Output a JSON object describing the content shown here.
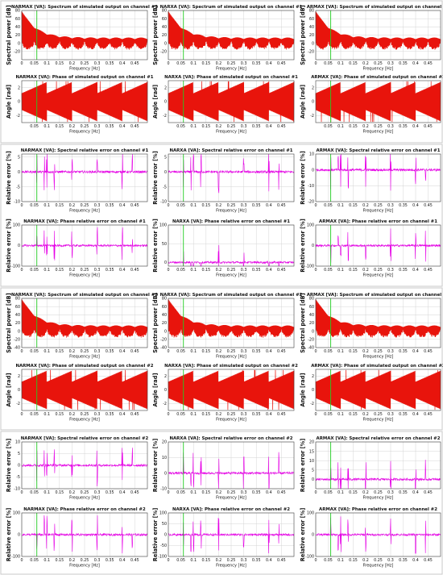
{
  "figure": {
    "groups": [
      {
        "rows": [
          "spectrum",
          "phase"
        ]
      },
      {
        "rows": [
          "spectral_error",
          "phase_error"
        ]
      },
      {
        "rows": [
          "spectrum",
          "phase"
        ]
      },
      {
        "rows": [
          "spectral_error",
          "phase_error"
        ]
      }
    ]
  },
  "colors": {
    "signal_output": "#e8140c",
    "signal_error": "#e600e6",
    "marker": "#22cc22",
    "grid": "#d4d4d4",
    "axis": "#444444"
  },
  "chart_data": [
    {
      "type": "line",
      "model": "NARMAX",
      "channel": 1,
      "kind": "spectrum",
      "title": "NARMAX [VA]: Spectrum of simulated output on channel #1",
      "xlabel": "Frequency [Hz]",
      "ylabel": "Spectral power [dB]",
      "xlim": [
        0,
        0.5
      ],
      "ylim": [
        -40,
        80
      ],
      "yticks": [
        -20,
        0,
        20,
        40,
        60,
        80
      ],
      "xticks": [
        0,
        0.05,
        0.1,
        0.15,
        0.2,
        0.25,
        0.3,
        0.35,
        0.4,
        0.45
      ],
      "marker_x": 0.06,
      "color": "#e8140c"
    },
    {
      "type": "line",
      "model": "NARXA",
      "channel": 1,
      "kind": "spectrum",
      "title": "NARXA [VA]: Spectrum of simulated output on channel #1",
      "xlabel": "Frequency [Hz]",
      "ylabel": "Spectral power [dB]",
      "xlim": [
        0,
        0.5
      ],
      "ylim": [
        -40,
        80
      ],
      "yticks": [
        -20,
        0,
        20,
        40,
        60,
        80
      ],
      "xticks": [
        0,
        0.05,
        0.1,
        0.15,
        0.2,
        0.25,
        0.3,
        0.35,
        0.4,
        0.45
      ],
      "marker_x": 0.06,
      "color": "#e8140c"
    },
    {
      "type": "line",
      "model": "ARMAX",
      "channel": 1,
      "kind": "spectrum",
      "title": "ARMAX [VA]: Spectrum of simulated output on channel #1",
      "xlabel": "Frequency [Hz]",
      "ylabel": "Spectral power [dB]",
      "xlim": [
        0,
        0.5
      ],
      "ylim": [
        -40,
        80
      ],
      "yticks": [
        -20,
        0,
        20,
        40,
        60,
        80
      ],
      "xticks": [
        0,
        0.05,
        0.1,
        0.15,
        0.2,
        0.25,
        0.3,
        0.35,
        0.4,
        0.45
      ],
      "marker_x": 0.06,
      "color": "#e8140c"
    },
    {
      "type": "line",
      "model": "NARMAX",
      "channel": 1,
      "kind": "phase",
      "title": "NARMAX [VA]: Phase of simulated output on channel #1",
      "xlabel": "Frequency [Hz]",
      "ylabel": "Angle [rad]",
      "xlim": [
        0,
        0.5
      ],
      "ylim": [
        -3,
        3
      ],
      "yticks": [
        -2,
        0,
        2
      ],
      "xticks": [
        0.05,
        0.1,
        0.15,
        0.2,
        0.25,
        0.3,
        0.35,
        0.4,
        0.45
      ],
      "marker_x": 0.06,
      "color": "#e8140c"
    },
    {
      "type": "line",
      "model": "NARXA",
      "channel": 1,
      "kind": "phase",
      "title": "NARXA [VA]: Phase of simulated output on channel #1",
      "xlabel": "Frequency [Hz]",
      "ylabel": "Angle [rad]",
      "xlim": [
        0,
        0.5
      ],
      "ylim": [
        -3,
        3
      ],
      "yticks": [
        -2,
        0,
        2
      ],
      "xticks": [
        0.05,
        0.1,
        0.15,
        0.2,
        0.25,
        0.3,
        0.35,
        0.4,
        0.45
      ],
      "marker_x": 0.06,
      "color": "#e8140c"
    },
    {
      "type": "line",
      "model": "ARMAX",
      "channel": 1,
      "kind": "phase",
      "title": "ARMAX [VA]: Phase of simulated output on channel #1",
      "xlabel": "Frequency [Hz]",
      "ylabel": "Angle [rad]",
      "xlim": [
        0,
        0.5
      ],
      "ylim": [
        -3,
        3
      ],
      "yticks": [
        -2,
        0,
        2
      ],
      "xticks": [
        0.05,
        0.1,
        0.15,
        0.2,
        0.25,
        0.3,
        0.35,
        0.4,
        0.45
      ],
      "marker_x": 0.06,
      "color": "#e8140c"
    },
    {
      "type": "line",
      "model": "NARMAX",
      "channel": 1,
      "kind": "spectral_error",
      "title": "NARMAX [VA]: Spectral relative error on channel #1",
      "xlabel": "Frequency [Hz]",
      "ylabel": "Relative error [%]",
      "xlim": [
        0,
        0.5
      ],
      "ylim": [
        -10,
        6
      ],
      "yticks": [
        -10,
        -5,
        0,
        5
      ],
      "xticks": [
        0,
        0.05,
        0.1,
        0.15,
        0.2,
        0.25,
        0.3,
        0.35,
        0.4,
        0.45
      ],
      "marker_x": 0.06,
      "color": "#e600e6"
    },
    {
      "type": "line",
      "model": "NARXA",
      "channel": 1,
      "kind": "spectral_error",
      "title": "NARXA [VA]: Spectral relative error on channel #1",
      "xlabel": "Frequency [Hz]",
      "ylabel": "Relative error [%]",
      "xlim": [
        0,
        0.5
      ],
      "ylim": [
        -10,
        6
      ],
      "yticks": [
        -10,
        -5,
        0,
        5
      ],
      "xticks": [
        0,
        0.05,
        0.1,
        0.15,
        0.2,
        0.25,
        0.3,
        0.35,
        0.4,
        0.45
      ],
      "marker_x": 0.06,
      "color": "#e600e6"
    },
    {
      "type": "line",
      "model": "ARMAX",
      "channel": 1,
      "kind": "spectral_error",
      "title": "ARMAX [VA]: Spectral relative error on channel #1",
      "xlabel": "Frequency [Hz]",
      "ylabel": "Relative error [%]",
      "xlim": [
        0,
        0.5
      ],
      "ylim": [
        -20,
        10
      ],
      "yticks": [
        -20,
        -10,
        0,
        10
      ],
      "xticks": [
        0,
        0.05,
        0.1,
        0.15,
        0.2,
        0.25,
        0.3,
        0.35,
        0.4,
        0.45
      ],
      "marker_x": 0.06,
      "color": "#e600e6"
    },
    {
      "type": "line",
      "model": "NARMAX",
      "channel": 1,
      "kind": "phase_error",
      "title": "NARMAX [VA]: Phase relative error on channel #1",
      "xlabel": "Frequency [Hz]",
      "ylabel": "Relative error [%]",
      "xlim": [
        0,
        0.5
      ],
      "ylim": [
        -100,
        100
      ],
      "yticks": [
        -100,
        0,
        100
      ],
      "xticks": [
        0,
        0.05,
        0.1,
        0.15,
        0.2,
        0.25,
        0.3,
        0.35,
        0.4,
        0.45
      ],
      "marker_x": 0.06,
      "color": "#e600e6"
    },
    {
      "type": "line",
      "model": "NARXA",
      "channel": 1,
      "kind": "phase_error",
      "title": "NARXA [VA]: Phase relative error on channel #1",
      "xlabel": "Frequency [Hz]",
      "ylabel": "Relative error [%]",
      "xlim": [
        0,
        0.5
      ],
      "ylim": [
        -10,
        100
      ],
      "yticks": [
        0,
        50,
        100
      ],
      "xticks": [
        0,
        0.05,
        0.1,
        0.15,
        0.2,
        0.25,
        0.3,
        0.35,
        0.4,
        0.45
      ],
      "marker_x": 0.06,
      "color": "#e600e6"
    },
    {
      "type": "line",
      "model": "ARMAX",
      "channel": 1,
      "kind": "phase_error",
      "title": "ARMAX [VA]: Phase relative error on channel #1",
      "xlabel": "Frequency [Hz]",
      "ylabel": "Relative error [%]",
      "xlim": [
        0,
        0.5
      ],
      "ylim": [
        -100,
        100
      ],
      "yticks": [
        -100,
        0,
        100
      ],
      "xticks": [
        0,
        0.05,
        0.1,
        0.15,
        0.2,
        0.25,
        0.3,
        0.35,
        0.4,
        0.45
      ],
      "marker_x": 0.06,
      "color": "#e600e6"
    },
    {
      "type": "line",
      "model": "NARMAX",
      "channel": 2,
      "kind": "spectrum",
      "title": "NARMAX [VA]: Spectrum of simulated output on channel #2",
      "xlabel": "Frequency [Hz]",
      "ylabel": "Spectral power [dB]",
      "xlim": [
        0,
        0.5
      ],
      "ylim": [
        -40,
        80
      ],
      "yticks": [
        -40,
        -20,
        0,
        20,
        40,
        60,
        80
      ],
      "xticks": [
        0,
        0.05,
        0.1,
        0.15,
        0.2,
        0.25,
        0.3,
        0.35,
        0.4,
        0.45
      ],
      "marker_x": 0.06,
      "color": "#e8140c"
    },
    {
      "type": "line",
      "model": "NARXA",
      "channel": 2,
      "kind": "spectrum",
      "title": "NARXA [VA]: Spectrum of simulated output on channel #2",
      "xlabel": "Frequency [Hz]",
      "ylabel": "Spectral power [dB]",
      "xlim": [
        0,
        0.5
      ],
      "ylim": [
        -40,
        80
      ],
      "yticks": [
        -40,
        -20,
        0,
        20,
        40,
        60,
        80
      ],
      "xticks": [
        0,
        0.05,
        0.1,
        0.15,
        0.2,
        0.25,
        0.3,
        0.35,
        0.4,
        0.45
      ],
      "marker_x": 0.06,
      "color": "#e8140c"
    },
    {
      "type": "line",
      "model": "ARMAX",
      "channel": 2,
      "kind": "spectrum",
      "title": "ARMAX [VA]: Spectrum of simulated output on channel #2",
      "xlabel": "Frequency [Hz]",
      "ylabel": "Spectral power [dB]",
      "xlim": [
        0,
        0.5
      ],
      "ylim": [
        -40,
        80
      ],
      "yticks": [
        -40,
        -20,
        0,
        20,
        40,
        60,
        80
      ],
      "xticks": [
        0,
        0.05,
        0.1,
        0.15,
        0.2,
        0.25,
        0.3,
        0.35,
        0.4,
        0.45
      ],
      "marker_x": 0.06,
      "color": "#e8140c"
    },
    {
      "type": "line",
      "model": "NARMAX",
      "channel": 2,
      "kind": "phase",
      "title": "NARMAX [VA]: Phase of simulated output on channel #2",
      "xlabel": "Frequency [Hz]",
      "ylabel": "Angle [rad]",
      "xlim": [
        0,
        0.5
      ],
      "ylim": [
        -3,
        3
      ],
      "yticks": [
        -2,
        0,
        2
      ],
      "xticks": [
        0,
        0.05,
        0.1,
        0.15,
        0.2,
        0.25,
        0.3,
        0.35,
        0.4,
        0.45
      ],
      "marker_x": 0.06,
      "color": "#e8140c"
    },
    {
      "type": "line",
      "model": "NARXA",
      "channel": 2,
      "kind": "phase",
      "title": "NARXA [VA]: Phase of simulated output on channel #2",
      "xlabel": "Frequency [Hz]",
      "ylabel": "Angle [rad]",
      "xlim": [
        0,
        0.5
      ],
      "ylim": [
        -3,
        3
      ],
      "yticks": [
        -2,
        0,
        2
      ],
      "xticks": [
        0,
        0.05,
        0.1,
        0.15,
        0.2,
        0.25,
        0.3,
        0.35,
        0.4,
        0.45
      ],
      "marker_x": 0.06,
      "color": "#e8140c"
    },
    {
      "type": "line",
      "model": "ARMAX",
      "channel": 2,
      "kind": "phase",
      "title": "ARMAX [VA]: Phase of simulated output on channel #2",
      "xlabel": "Frequency [Hz]",
      "ylabel": "Angle [rad]",
      "xlim": [
        0,
        0.5
      ],
      "ylim": [
        -3,
        3
      ],
      "yticks": [
        -2,
        0,
        2
      ],
      "xticks": [
        0,
        0.05,
        0.1,
        0.15,
        0.2,
        0.25,
        0.3,
        0.35,
        0.4,
        0.45
      ],
      "marker_x": 0.06,
      "color": "#e8140c"
    },
    {
      "type": "line",
      "model": "NARMAX",
      "channel": 2,
      "kind": "spectral_error",
      "title": "NARMAX [VA]: Spectral relative error on channel #2",
      "xlabel": "Frequency [Hz]",
      "ylabel": "Relative error [%]",
      "xlim": [
        0,
        0.5
      ],
      "ylim": [
        -10,
        10
      ],
      "yticks": [
        -10,
        -5,
        0,
        5,
        10
      ],
      "xticks": [
        0,
        0.05,
        0.1,
        0.15,
        0.2,
        0.25,
        0.3,
        0.35,
        0.4,
        0.45
      ],
      "marker_x": 0.06,
      "color": "#e600e6"
    },
    {
      "type": "line",
      "model": "NARXA",
      "channel": 2,
      "kind": "spectral_error",
      "title": "NARXA [VA]: Spectral relative error on channel #2",
      "xlabel": "Frequency [Hz]",
      "ylabel": "Relative error [%]",
      "xlim": [
        0,
        0.5
      ],
      "ylim": [
        -10,
        20
      ],
      "yticks": [
        -10,
        0,
        10,
        20
      ],
      "xticks": [
        0,
        0.05,
        0.1,
        0.15,
        0.2,
        0.25,
        0.3,
        0.35,
        0.4,
        0.45
      ],
      "marker_x": 0.06,
      "color": "#e600e6"
    },
    {
      "type": "line",
      "model": "ARMAX",
      "channel": 2,
      "kind": "spectral_error",
      "title": "ARMAX [VA]: Spectral relative error on channel #2",
      "xlabel": "Frequency [Hz]",
      "ylabel": "Relative error [%]",
      "xlim": [
        0,
        0.5
      ],
      "ylim": [
        -5,
        20
      ],
      "yticks": [
        0,
        5,
        10,
        15,
        20
      ],
      "xticks": [
        0,
        0.05,
        0.1,
        0.15,
        0.2,
        0.25,
        0.3,
        0.35,
        0.4,
        0.45
      ],
      "marker_x": 0.06,
      "color": "#e600e6"
    },
    {
      "type": "line",
      "model": "NARMAX",
      "channel": 2,
      "kind": "phase_error",
      "title": "NARMAX [VA]: Phase relative error on channel #2",
      "xlabel": "Frequency [Hz]",
      "ylabel": "Relative error [%]",
      "xlim": [
        0,
        0.5
      ],
      "ylim": [
        -100,
        100
      ],
      "yticks": [
        -100,
        0,
        100
      ],
      "xticks": [
        0,
        0.05,
        0.1,
        0.15,
        0.2,
        0.25,
        0.3,
        0.35,
        0.4,
        0.45
      ],
      "marker_x": 0.06,
      "color": "#e600e6"
    },
    {
      "type": "line",
      "model": "NARXA",
      "channel": 2,
      "kind": "phase_error",
      "title": "NARXA [VA]: Phase relative error on channel #2",
      "xlabel": "Frequency [Hz]",
      "ylabel": "Relative error [%]",
      "xlim": [
        0,
        0.5
      ],
      "ylim": [
        -100,
        100
      ],
      "yticks": [
        -100,
        -50,
        0,
        50,
        100
      ],
      "xticks": [
        0,
        0.05,
        0.1,
        0.15,
        0.2,
        0.25,
        0.3,
        0.35,
        0.4,
        0.45
      ],
      "marker_x": 0.06,
      "color": "#e600e6"
    },
    {
      "type": "line",
      "model": "ARMAX",
      "channel": 2,
      "kind": "phase_error",
      "title": "ARMAX [VA]: Phase relative error on channel #2",
      "xlabel": "Frequency [Hz]",
      "ylabel": "Relative error [%]",
      "xlim": [
        0,
        0.5
      ],
      "ylim": [
        -100,
        100
      ],
      "yticks": [
        -100,
        0,
        100
      ],
      "xticks": [
        0,
        0.05,
        0.1,
        0.15,
        0.2,
        0.25,
        0.3,
        0.35,
        0.4,
        0.45
      ],
      "marker_x": 0.06,
      "color": "#e600e6"
    }
  ]
}
